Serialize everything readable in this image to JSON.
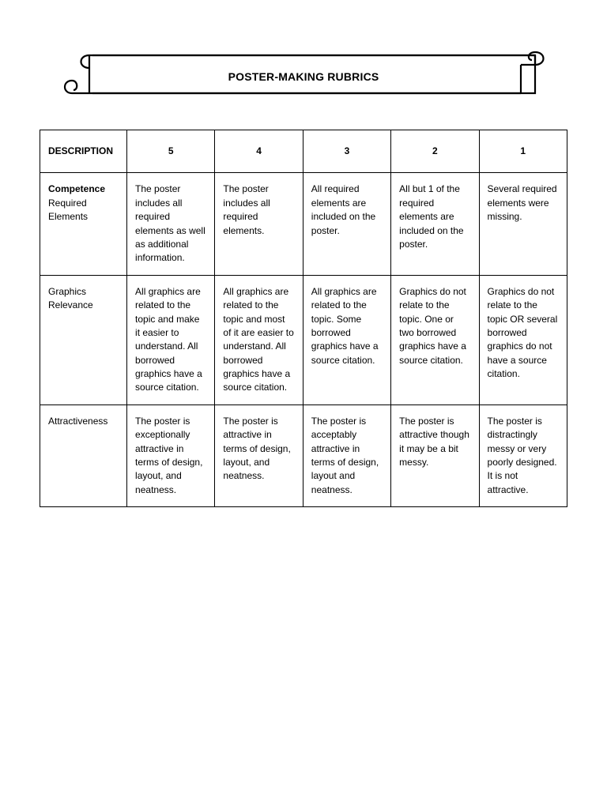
{
  "title": "POSTER-MAKING RUBRICS",
  "columns": [
    "DESCRIPTION",
    "5",
    "4",
    "3",
    "2",
    "1"
  ],
  "rows": [
    {
      "desc_bold": "Competence",
      "desc_rest": "Required Elements",
      "c5": "The poster includes all required elements as well as additional information.",
      "c4": "The poster includes all required elements.",
      "c3": "All required elements are included on the poster.",
      "c2": "All but 1 of the required elements are included on the poster.",
      "c1": "Several required elements were missing."
    },
    {
      "desc_bold": "",
      "desc_rest": "Graphics Relevance",
      "c5": "All graphics are related to the topic and make it easier to understand. All borrowed graphics have a source citation.",
      "c4": "All graphics are related to the topic and most of it are easier to understand. All borrowed graphics have a source citation.",
      "c3": "All graphics are related to the topic. Some borrowed graphics have a source citation.",
      "c2": "Graphics do not relate to the topic. One or two borrowed graphics have a source citation.",
      "c1": "Graphics do not relate to the topic OR several borrowed graphics do not have a source citation."
    },
    {
      "desc_bold": "",
      "desc_rest": "Attractiveness",
      "c5": "The poster is exceptionally attractive in terms of design, layout, and neatness.",
      "c4": "The poster is attractive in terms of design, layout, and neatness.",
      "c3": "The poster is acceptably attractive in terms of design, layout and neatness.",
      "c2": "The poster is attractive though it may be a bit messy.",
      "c1": "The poster is distractingly messy or very poorly designed. It is not attractive."
    }
  ],
  "table_style": {
    "border_color": "#000000",
    "background_color": "#ffffff",
    "header_fontsize": 12,
    "cell_fontsize": 12,
    "font_family": "Century Gothic"
  }
}
